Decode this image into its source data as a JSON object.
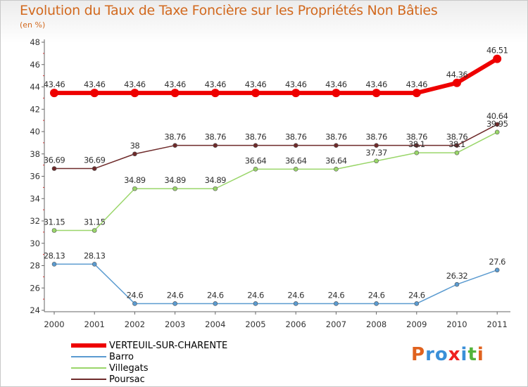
{
  "title": "Evolution du Taux de Taxe Foncière sur les Propriétés Non Bâties",
  "unit": "(en %)",
  "logo": {
    "letters": [
      "P",
      "r",
      "o",
      "x",
      "i",
      "t",
      "i"
    ],
    "colors": [
      "#e0621e",
      "#3a8fd8",
      "#3a8fd8",
      "#ef2020",
      "#3a8fd8",
      "#52b43c",
      "#e0621e"
    ]
  },
  "chart_data": {
    "type": "line",
    "title": "Evolution du Taux de Taxe Foncière sur les Propriétés Non Bâties",
    "ylabel": "(en %)",
    "xlabel": "",
    "x": [
      "2000",
      "2001",
      "2002",
      "2003",
      "2004",
      "2005",
      "2006",
      "2007",
      "2008",
      "2009",
      "2010",
      "2011"
    ],
    "yticks": [
      "24",
      "26",
      "28",
      "30",
      "32",
      "34",
      "36",
      "38",
      "40",
      "42",
      "44",
      "46",
      "48"
    ],
    "ylim": [
      24,
      48
    ],
    "grid": false,
    "legend_position": "bottom-left",
    "series": [
      {
        "name": "VERTEUIL-SUR-CHARENTE",
        "color": "#ee0000",
        "width": 6,
        "point_radius": 6,
        "values": [
          43.46,
          43.46,
          43.46,
          43.46,
          43.46,
          43.46,
          43.46,
          43.46,
          43.46,
          43.46,
          44.36,
          46.51
        ],
        "labels": [
          "43.46",
          "43.46",
          "43.46",
          "43.46",
          "43.46",
          "43.46",
          "43.46",
          "43.46",
          "43.46",
          "43.46",
          "44.36",
          "46.51"
        ]
      },
      {
        "name": "Barro",
        "color": "#5b9bd0",
        "width": 1.5,
        "point_radius": 3,
        "values": [
          28.13,
          28.13,
          24.6,
          24.6,
          24.6,
          24.6,
          24.6,
          24.6,
          24.6,
          24.6,
          26.32,
          27.6
        ],
        "labels": [
          "28.13",
          "28.13",
          "24.6",
          "24.6",
          "24.6",
          "24.6",
          "24.6",
          "24.6",
          "24.6",
          "24.6",
          "26.32",
          "27.6"
        ]
      },
      {
        "name": "Villegats",
        "color": "#9ad66a",
        "width": 1.5,
        "point_radius": 3,
        "values": [
          31.15,
          31.15,
          34.89,
          34.89,
          34.89,
          36.64,
          36.64,
          36.64,
          37.37,
          38.1,
          38.1,
          39.95
        ],
        "labels": [
          "31.15",
          "31.15",
          "34.89",
          "34.89",
          "34.89",
          "36.64",
          "36.64",
          "36.64",
          "37.37",
          "38.1",
          "38.1",
          "39.95"
        ]
      },
      {
        "name": "Poursac",
        "color": "#6e2a2a",
        "width": 1.5,
        "point_radius": 3,
        "values": [
          36.69,
          36.69,
          38,
          38.76,
          38.76,
          38.76,
          38.76,
          38.76,
          38.76,
          38.76,
          38.76,
          40.64
        ],
        "labels": [
          "36.69",
          "36.69",
          "38",
          "38.76",
          "38.76",
          "38.76",
          "38.76",
          "38.76",
          "38.76",
          "38.76",
          "38.76",
          "40.64"
        ]
      }
    ]
  }
}
